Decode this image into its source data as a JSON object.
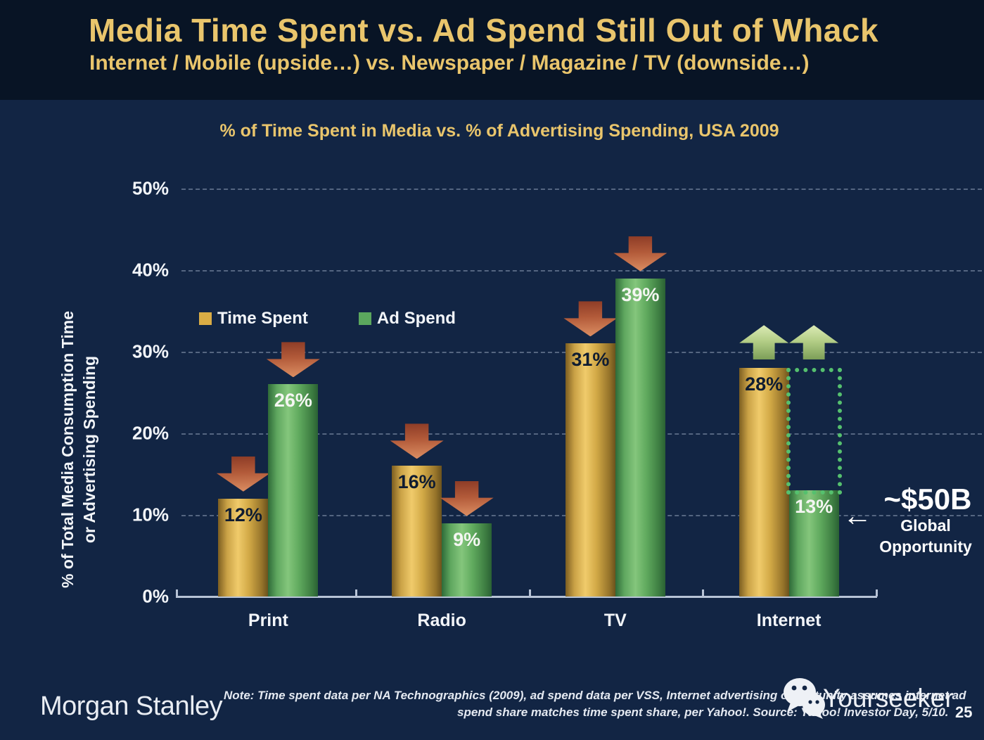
{
  "slide": {
    "title": "Media Time Spent vs. Ad Spend Still Out of Whack",
    "subtitle": "Internet / Mobile (upside…) vs. Newspaper / Magazine / TV (downside…)"
  },
  "chart_data": {
    "type": "bar",
    "title": "% of Time Spent in Media vs. % of Advertising Spending, USA 2009",
    "categories": [
      "Print",
      "Radio",
      "TV",
      "Internet"
    ],
    "series": [
      {
        "name": "Time Spent",
        "color": "#d9ac45",
        "values": [
          12,
          16,
          31,
          28
        ]
      },
      {
        "name": "Ad Spend",
        "color": "#5ba75e",
        "values": [
          26,
          9,
          39,
          13
        ]
      }
    ],
    "value_label_suffix": "%",
    "ylabel_lines": [
      "% of Total Media Consumption Time",
      "or Advertising Spending"
    ],
    "ylim": [
      0,
      50
    ],
    "yticks": [
      "0%",
      "10%",
      "20%",
      "30%",
      "40%",
      "50%"
    ],
    "ytick_step": 10,
    "grid": "dashed-horizontal",
    "legend_position": "inside-top-left",
    "trend_arrows": [
      {
        "category": "Print",
        "direction": "down"
      },
      {
        "category": "Radio",
        "direction": "down"
      },
      {
        "category": "TV",
        "direction": "down"
      },
      {
        "category": "Internet",
        "direction": "up"
      }
    ],
    "opportunity_box": {
      "category": "Internet",
      "series": "Ad Spend",
      "from_value": 13,
      "to_value": 28
    }
  },
  "annotation": {
    "value": "~$50B",
    "line1": "Global",
    "line2": "Opportunity",
    "arrow_glyph": "←"
  },
  "colors": {
    "background": "#122544",
    "header_background": "#081425",
    "gold_text": "#e9c56c",
    "bar_gold": "#d9ac45",
    "bar_green": "#5ba75e",
    "down_arrow": "#c87a50",
    "up_arrow": "#aac67e",
    "dotted_box": "#55c06e"
  },
  "footer": {
    "brand": "Morgan Stanley",
    "note_line1": "Note: Time spent data per NA Technographics (2009), ad spend data per VSS, Internet advertising opportunity assumes internet ad",
    "note_line2": "spend share matches time spent share, per Yahoo!. Source: Yahoo! Investor Day, 5/10.",
    "watermark": "Yourseeker",
    "page_number": "25"
  }
}
